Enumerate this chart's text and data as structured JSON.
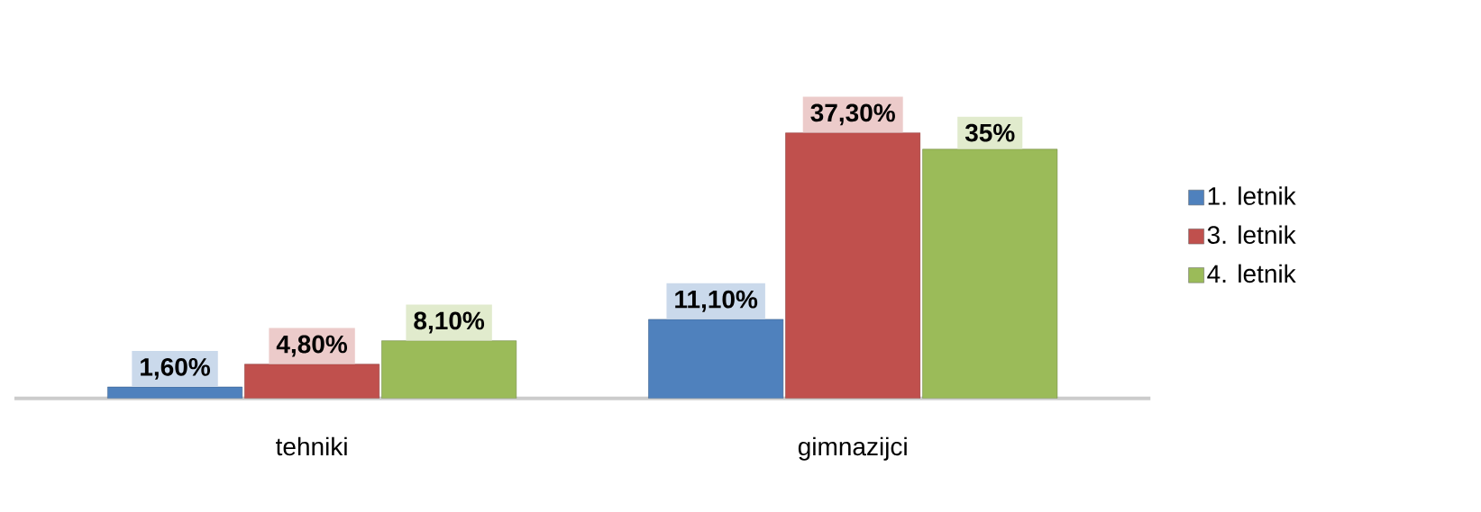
{
  "chart_data": {
    "type": "bar",
    "categories": [
      "tehniki",
      "gimnazijci"
    ],
    "series": [
      {
        "name": "1. letnik",
        "color": "#4f81bd",
        "values": [
          1.6,
          11.1
        ],
        "value_labels": [
          "1,60%",
          "11,10%"
        ]
      },
      {
        "name": "3. letnik",
        "color": "#c0504d",
        "values": [
          4.8,
          37.3
        ],
        "value_labels": [
          "4,80%",
          "37,30%"
        ]
      },
      {
        "name": "4. letnik",
        "color": "#9bbb59",
        "values": [
          8.1,
          35
        ],
        "value_labels": [
          "8,10%",
          "35%"
        ]
      }
    ],
    "legend": "right"
  }
}
